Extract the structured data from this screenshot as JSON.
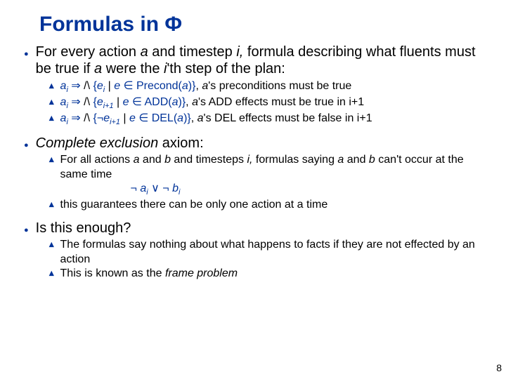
{
  "title": "Formulas in Φ",
  "colors": {
    "accent": "#003399",
    "text": "#000000",
    "bg": "#ffffff"
  },
  "fonts": {
    "title_size": 30,
    "l1_size": 20,
    "l2_size": 16
  },
  "s1": {
    "lead": "For every action ",
    "a": "a",
    "mid1": " and timestep ",
    "i": "i,",
    "mid2": " formula describing what fluents must be true if ",
    "a2": "a",
    "mid3": " were the ",
    "ith": "i",
    "mid4": "'th step of the plan:",
    "rows": [
      {
        "ai": "a",
        "sub": "i",
        "imp": " ⇒ ",
        "wedge": "/\\",
        "set_open": " {",
        "e": "e",
        "esub": "i",
        "bar": " | ",
        "e2": "e",
        "in": " ∈ ",
        "fn": "Precond(",
        "arg": "a",
        "fn_close": ")}",
        "tail": ", ",
        "a_again": "a",
        "desc": "'s preconditions must be true"
      },
      {
        "ai": "a",
        "sub": "i",
        "imp": " ⇒ ",
        "wedge": "/\\",
        "set_open": " {",
        "e": "e",
        "esub": "i+1",
        "bar": " | ",
        "e2": "e",
        "in": " ∈ ",
        "fn": "ADD(",
        "arg": "a",
        "fn_close": ")}",
        "tail": ", ",
        "a_again": "a",
        "desc": "'s ADD effects must be true in i+1"
      },
      {
        "ai": "a",
        "sub": "i",
        "imp": " ⇒ ",
        "wedge": "/\\",
        "set_open": " {",
        "neg": "¬",
        "e": "e",
        "esub": "i+1",
        "bar": " | ",
        "e2": "e",
        "in": " ∈ ",
        "fn": "DEL(",
        "arg": "a",
        "fn_close": ")}",
        "tail": ", ",
        "a_again": "a",
        "desc": "'s DEL effects must be false in i+1"
      }
    ]
  },
  "s2": {
    "head_pre": "Complete exclusion",
    "head_post": " axiom:",
    "line1a": "For all actions ",
    "a": "a",
    "and1": " and ",
    "b": "b",
    "and2": " and timesteps ",
    "i": "i,",
    "line1b": " formulas saying ",
    "a2": "a",
    "and3": " and ",
    "b2": "b",
    "line1c": " can't occur at the same time",
    "formula_neg1": "¬ ",
    "fa": "a",
    "fas": "i",
    "or": " ∨ ",
    "formula_neg2": "¬ ",
    "fb": "b",
    "fbs": "i",
    "line2": "this guarantees there can be only one action at a time"
  },
  "s3": {
    "head": "Is this enough?",
    "line1": "The formulas say nothing about what happens to facts if they are not effected by an action",
    "line2a": "This is known as the ",
    "frame": "frame problem"
  },
  "page": "8"
}
